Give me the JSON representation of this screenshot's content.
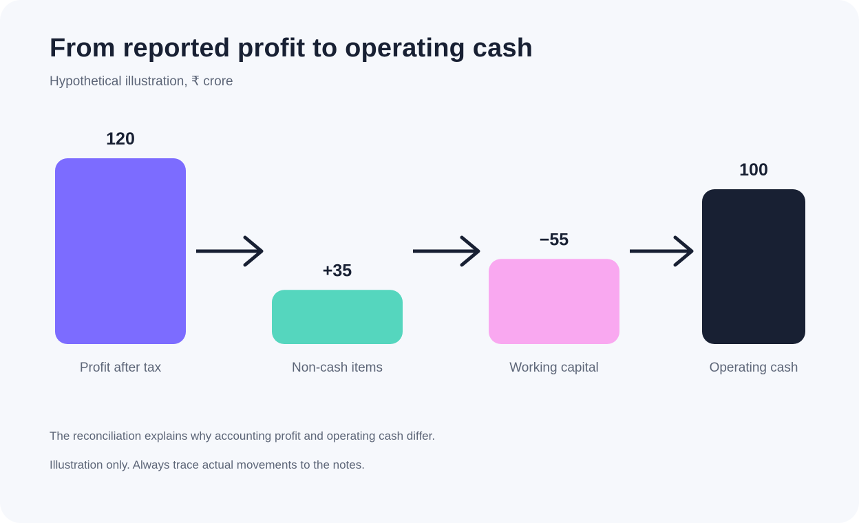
{
  "header": {
    "title": "From reported profit to operating cash",
    "subtitle": "Hypothetical illustration, ₹ crore"
  },
  "chart_data": {
    "type": "bar",
    "categories": [
      "Profit after tax",
      "Non-cash items",
      "Working capital",
      "Operating cash"
    ],
    "values": [
      120,
      35,
      -55,
      100
    ],
    "value_labels": [
      "120",
      "+35",
      "−55",
      "100"
    ],
    "colors": [
      "#7c6cff",
      "#55d6be",
      "#f9a8f0",
      "#182033"
    ],
    "arrow_color": "#182033",
    "grid": false,
    "legend": "none"
  },
  "footer": {
    "note": "The reconciliation explains why accounting profit and operating cash differ.",
    "disclaimer": "Illustration only. Always trace actual movements to the notes."
  }
}
